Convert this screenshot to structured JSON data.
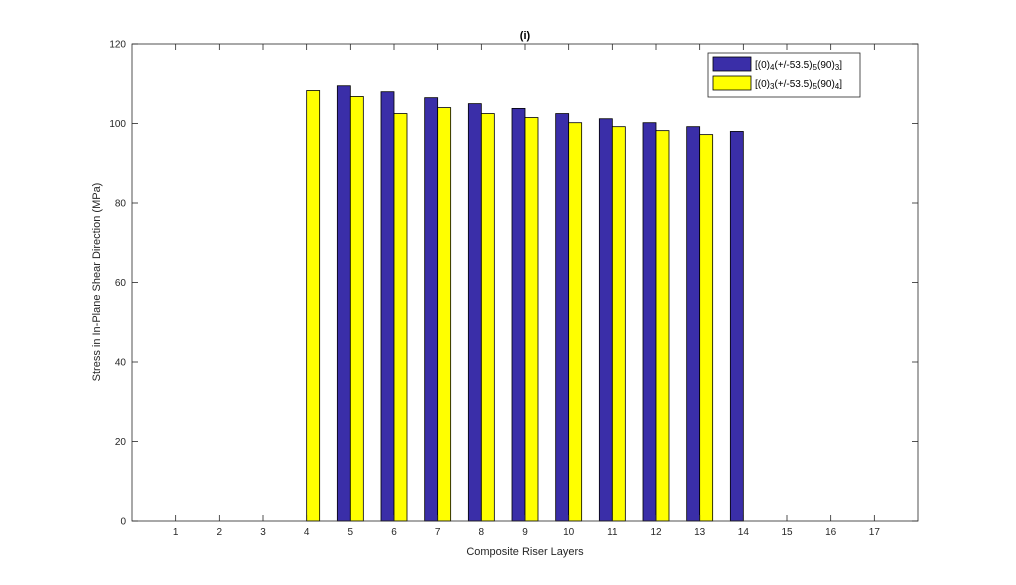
{
  "chart_data": {
    "type": "bar",
    "title": "(i)",
    "xlabel": "Composite Riser Layers",
    "ylabel": "Stress in In-Plane Shear Direction (MPa)",
    "categories": [
      "1",
      "2",
      "3",
      "4",
      "5",
      "6",
      "7",
      "8",
      "9",
      "10",
      "11",
      "12",
      "13",
      "14",
      "15",
      "16",
      "17"
    ],
    "ylim": [
      0,
      120
    ],
    "yticks": [
      "0",
      "20",
      "40",
      "60",
      "80",
      "100",
      "120"
    ],
    "grid": false,
    "legend_position": "top-right",
    "series": [
      {
        "name": "[(0)4(+/-53.5)5(90)3]",
        "legend_parts": [
          "[(0)",
          "4",
          "(+/-53.5)",
          "5",
          "(90)",
          "3",
          "]"
        ],
        "color": "#3a2ea8",
        "values": [
          0,
          0,
          0,
          0,
          109.5,
          108,
          106.5,
          105,
          103.8,
          102.5,
          101.2,
          100.2,
          99.2,
          98,
          0,
          0,
          0
        ]
      },
      {
        "name": "[(0)3(+/-53.5)5(90)4]",
        "legend_parts": [
          "[(0)",
          "3",
          "(+/-53.5)",
          "5",
          "(90)",
          "4",
          "]"
        ],
        "color": "#ffff00",
        "values": [
          0,
          0,
          0,
          108.3,
          106.8,
          102.5,
          104,
          102.5,
          101.5,
          100.2,
          99.2,
          98.2,
          97.2,
          0,
          0,
          0,
          0
        ]
      }
    ]
  }
}
